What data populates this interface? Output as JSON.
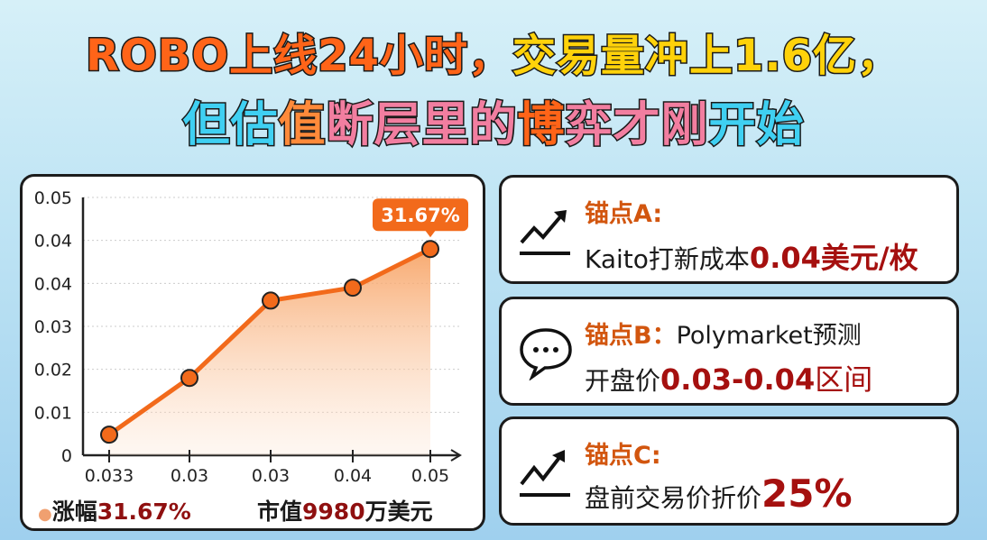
{
  "title": {
    "line1": [
      {
        "text": "ROBO上线24小时，",
        "color": "#ff6418"
      },
      {
        "text": "交易量冲上1.6亿，",
        "color": "#ffd20a"
      }
    ],
    "line2": [
      {
        "text": "但估",
        "color": "#3fd0f2"
      },
      {
        "text": "值",
        "color": "#ff8a3a"
      },
      {
        "text": "断层里的",
        "color": "#f27ea0"
      },
      {
        "text": "博",
        "color": "#ff6418"
      },
      {
        "text": "弈才刚",
        "color": "#f27ea0"
      },
      {
        "text": "开始",
        "color": "#3fd0f2"
      }
    ]
  },
  "chart_data": {
    "type": "area",
    "categories": [
      "0.033",
      "0.03",
      "0.03",
      "0.04",
      "0.05"
    ],
    "values": [
      0.004,
      0.015,
      0.03,
      0.0325,
      0.04
    ],
    "ylim": [
      0,
      0.05
    ],
    "y_tick_labels": [
      "0",
      "0.01",
      "0.02",
      "0.03",
      "0.04",
      "0.04",
      "0.05"
    ],
    "grid": true,
    "annotation": "31.67%",
    "color": "#f26a1b"
  },
  "legend": {
    "left_label": "涨幅",
    "left_value": "31.67%",
    "right_label": "市值",
    "right_value": "9980",
    "right_unit": "万美元"
  },
  "anchors": [
    {
      "icon": "trend-up-icon",
      "head": "锚点A:",
      "text": "Kaito打新成本",
      "highlight": "0.04美元/枚",
      "tail": ""
    },
    {
      "icon": "chat-bubble-icon",
      "head": "锚点B：",
      "head_tail": "Polymarket预测",
      "text": "开盘价",
      "highlight": "0.03-0.04",
      "tail": "区间"
    },
    {
      "icon": "trend-up-icon",
      "head": "锚点C:",
      "text": "盘前交易价折价",
      "highlight": "25%",
      "tail": ""
    }
  ]
}
